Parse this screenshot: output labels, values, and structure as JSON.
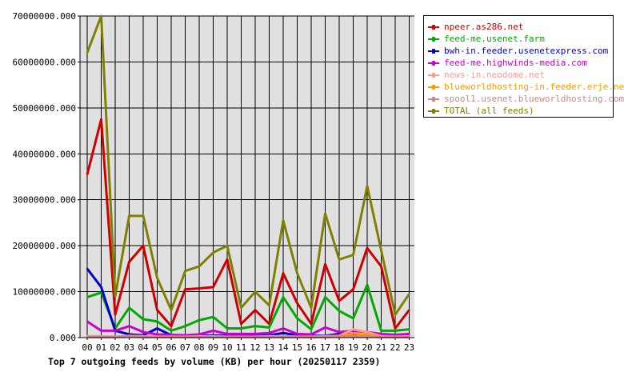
{
  "chart_data": {
    "type": "line",
    "title": "Top 7 outgoing feeds by volume (KB) per hour (20250117 2359)",
    "categories": [
      "00",
      "01",
      "02",
      "03",
      "04",
      "05",
      "06",
      "07",
      "08",
      "09",
      "10",
      "11",
      "12",
      "13",
      "14",
      "15",
      "16",
      "17",
      "18",
      "19",
      "20",
      "21",
      "22",
      "23"
    ],
    "y_ticks": [
      "0.000",
      "10000000.000",
      "20000000.000",
      "30000000.000",
      "40000000.000",
      "50000000.000",
      "60000000.000",
      "70000000.000"
    ],
    "ylim": [
      0,
      70000000
    ],
    "grid": true,
    "legend_position": "right",
    "series": [
      {
        "name": "npeer.as286.net",
        "color": "#cc0000",
        "values": [
          35500000,
          47500000,
          5000000,
          16500000,
          20000000,
          6000000,
          2500000,
          10500000,
          10700000,
          11000000,
          17000000,
          3000000,
          6000000,
          3000000,
          14000000,
          7500000,
          3000000,
          16000000,
          8000000,
          10500000,
          19500000,
          15500000,
          2000000,
          6000000
        ]
      },
      {
        "name": "feed-me.usenet.farm",
        "color": "#00aa00",
        "values": [
          8800000,
          9800000,
          2000000,
          6500000,
          4000000,
          3500000,
          1500000,
          2500000,
          3800000,
          4500000,
          2000000,
          2000000,
          2500000,
          2200000,
          8800000,
          4200000,
          1800000,
          8800000,
          5800000,
          4200000,
          11500000,
          1500000,
          1500000,
          1800000
        ]
      },
      {
        "name": "bwh-in.feeder.usenetexpress.com",
        "color": "#0000cc",
        "values": [
          15000000,
          11000000,
          1500000,
          700000,
          500000,
          2000000,
          500000,
          400000,
          400000,
          500000,
          400000,
          400000,
          400000,
          500000,
          1000000,
          500000,
          400000,
          400000,
          800000,
          800000,
          500000,
          400000,
          400000,
          500000
        ]
      },
      {
        "name": "feed-me.highwinds-media.com",
        "color": "#cc00cc",
        "values": [
          3500000,
          1500000,
          1500000,
          2500000,
          1200000,
          700000,
          600000,
          500000,
          700000,
          1500000,
          800000,
          800000,
          800000,
          1000000,
          2000000,
          800000,
          700000,
          2200000,
          1200000,
          1500000,
          1200000,
          800000,
          600000,
          800000
        ]
      },
      {
        "name": "news-in.neodome.net",
        "color": "#ff9999",
        "values": [
          300000,
          300000,
          200000,
          400000,
          300000,
          200000,
          200000,
          200000,
          300000,
          300000,
          200000,
          200000,
          200000,
          300000,
          300000,
          200000,
          200000,
          300000,
          400000,
          1800000,
          1200000,
          300000,
          200000,
          300000
        ]
      },
      {
        "name": "blueworldhosting-in.feeder.erje.net",
        "color": "#ff9900",
        "values": [
          200000,
          200000,
          200000,
          300000,
          200000,
          200000,
          200000,
          200000,
          200000,
          200000,
          200000,
          200000,
          200000,
          200000,
          200000,
          200000,
          200000,
          200000,
          300000,
          900000,
          600000,
          200000,
          200000,
          200000
        ]
      },
      {
        "name": "spool1.usenet.blueworldhosting.com",
        "color": "#cc8888",
        "values": [
          100000,
          100000,
          100000,
          200000,
          100000,
          100000,
          100000,
          100000,
          100000,
          100000,
          100000,
          100000,
          100000,
          100000,
          100000,
          100000,
          100000,
          100000,
          200000,
          300000,
          200000,
          100000,
          100000,
          100000
        ]
      },
      {
        "name": "TOTAL (all feeds)",
        "color": "#808000",
        "values": [
          62000000,
          70000000,
          9000000,
          26500000,
          26500000,
          13000000,
          6000000,
          14500000,
          15500000,
          18500000,
          20000000,
          6500000,
          10000000,
          7000000,
          25500000,
          14000000,
          6500000,
          27000000,
          17000000,
          18000000,
          33000000,
          19000000,
          5000000,
          9500000
        ]
      }
    ]
  }
}
